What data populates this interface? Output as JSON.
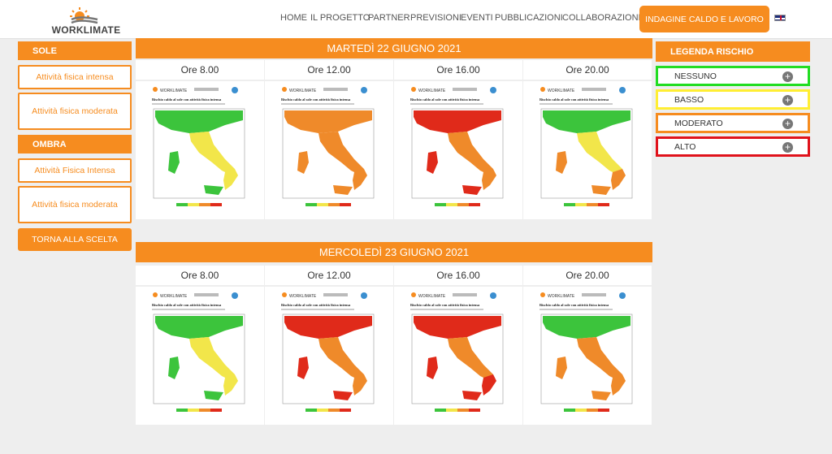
{
  "brand": {
    "name": "WORKLIMATE"
  },
  "nav": {
    "items": [
      "HOME",
      "IL PROGETTO",
      "PARTNER",
      "PREVISIONI",
      "EVENTI",
      "PUBBLICAZIONI",
      "COLLABORAZIONI"
    ],
    "cta": "INDAGINE CALDO E LAVORO",
    "lang_icon": "uk-flag-icon"
  },
  "sidebar": {
    "sole_title": "SOLE",
    "sole_items": [
      "Attività fisica intensa",
      "Attività fisica moderata"
    ],
    "ombra_title": "OMBRA",
    "ombra_items": [
      "Attività Fisica Intensa",
      "Attività fisica moderata"
    ],
    "back_button": "TORNA ALLA SCELTA"
  },
  "forecast": {
    "days": [
      {
        "title": "MARTEDÌ 22 GIUGNO 2021",
        "hours": [
          "Ore 8.00",
          "Ore 12.00",
          "Ore 16.00",
          "Ore 20.00"
        ]
      },
      {
        "title": "MERCOLEDÌ 23 GIUGNO 2021",
        "hours": [
          "Ore 8.00",
          "Ore 12.00",
          "Ore 16.00",
          "Ore 20.00"
        ]
      }
    ],
    "map_logo": "WORKLIMATE",
    "map_title": "Rischio caldo al sole con attività fisica intensa"
  },
  "legend": {
    "title": "LEGENDA RISCHIO",
    "items": [
      {
        "label": "NESSUNO",
        "color": "#22dd22"
      },
      {
        "label": "BASSO",
        "color": "#ffee33"
      },
      {
        "label": "MODERATO",
        "color": "#f68c1f"
      },
      {
        "label": "ALTO",
        "color": "#e0121b"
      }
    ]
  },
  "colors": {
    "accent": "#f68c1f",
    "none": "#3cc43c",
    "low": "#f2e64a",
    "moderate": "#ef8a2a",
    "high": "#e02a1a"
  }
}
